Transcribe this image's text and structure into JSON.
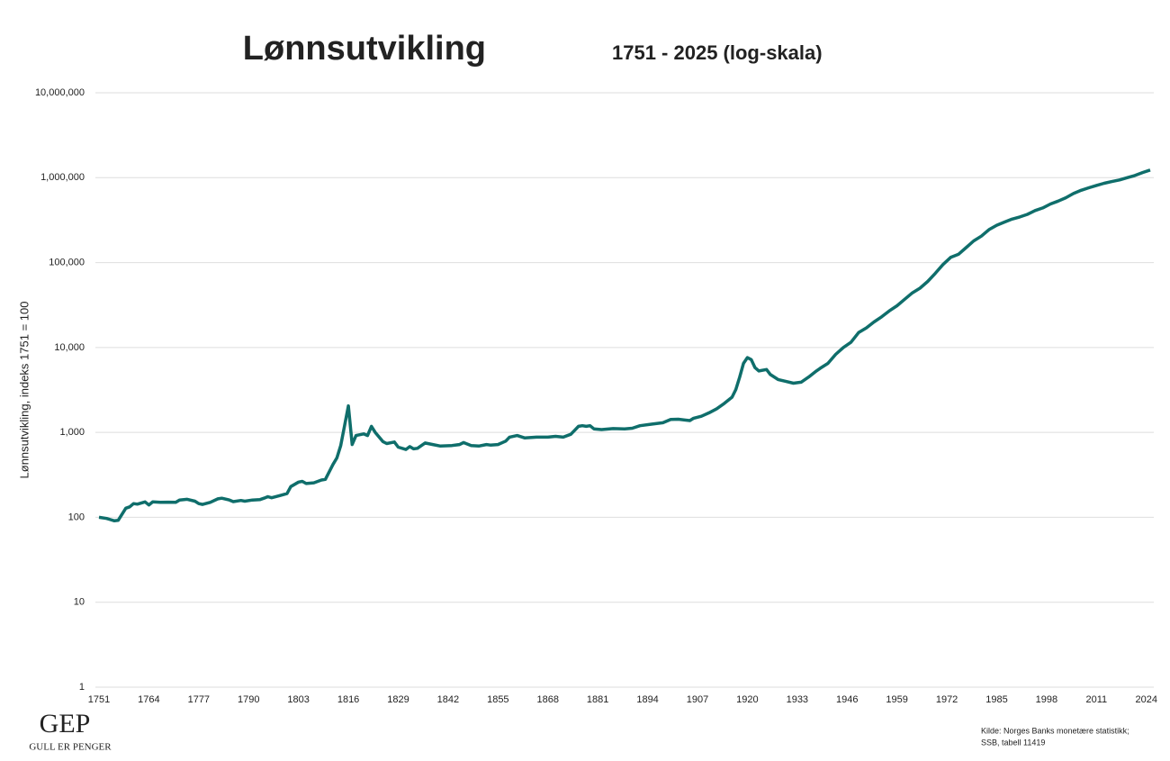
{
  "chart_data": {
    "type": "line",
    "title": "Lønnsutvikling",
    "subtitle": "1751 - 2025 (log-skala)",
    "y_label": "Lønnsutvikling, indeks 1751 = 100",
    "source": [
      "Kilde: Norges Banks monetære statistikk;",
      "SSB, tabell 11419"
    ],
    "logo": [
      "GEP",
      "GULL ER PENGER"
    ],
    "log_scale": true,
    "grid": true,
    "xlim": [
      1751,
      2025
    ],
    "xticks": [
      1751,
      1764,
      1777,
      1790,
      1803,
      1816,
      1829,
      1842,
      1855,
      1868,
      1881,
      1894,
      1907,
      1920,
      1933,
      1946,
      1959,
      1972,
      1985,
      1998,
      2011,
      2024
    ],
    "ylim": [
      1,
      10000000
    ],
    "yticks": [
      1,
      10,
      100,
      {
        "value": 1000,
        "label": "1,000"
      },
      {
        "value": 10000,
        "label": "10,000"
      },
      {
        "value": 100000,
        "label": "100,000"
      },
      {
        "value": 1000000,
        "label": "1,000,000"
      },
      {
        "value": 10000000,
        "label": "10,000,000"
      }
    ],
    "series": [
      {
        "color": "#0f6e6b",
        "x": [
          1751,
          1753,
          1754,
          1755,
          1756,
          1758,
          1759,
          1760,
          1761,
          1763,
          1764,
          1765,
          1767,
          1769,
          1771,
          1772,
          1774,
          1776,
          1777,
          1778,
          1780,
          1782,
          1783,
          1785,
          1786,
          1788,
          1789,
          1791,
          1793,
          1794,
          1795,
          1796,
          1798,
          1800,
          1801,
          1803,
          1804,
          1805,
          1807,
          1809,
          1810,
          1812,
          1813,
          1814,
          1816,
          1817,
          1818,
          1820,
          1821,
          1822,
          1823,
          1825,
          1826,
          1828,
          1829,
          1831,
          1832,
          1833,
          1834,
          1836,
          1838,
          1840,
          1843,
          1845,
          1846,
          1848,
          1850,
          1852,
          1853,
          1855,
          1857,
          1858,
          1860,
          1862,
          1865,
          1868,
          1870,
          1872,
          1874,
          1876,
          1877,
          1878,
          1879,
          1880,
          1882,
          1885,
          1888,
          1890,
          1892,
          1895,
          1898,
          1900,
          1902,
          1905,
          1906,
          1908,
          1910,
          1912,
          1914,
          1916,
          1917,
          1918,
          1919,
          1920,
          1921,
          1922,
          1923,
          1925,
          1926,
          1928,
          1930,
          1932,
          1934,
          1936,
          1938,
          1939,
          1941,
          1943,
          1945,
          1947,
          1949,
          1951,
          1953,
          1955,
          1957,
          1959,
          1961,
          1963,
          1965,
          1967,
          1969,
          1971,
          1973,
          1975,
          1977,
          1979,
          1981,
          1983,
          1985,
          1987,
          1989,
          1991,
          1993,
          1995,
          1997,
          1999,
          2001,
          2003,
          2005,
          2007,
          2009,
          2011,
          2013,
          2015,
          2017,
          2019,
          2021,
          2023,
          2025
        ],
        "values": [
          100,
          97,
          94,
          91,
          92,
          128,
          133,
          145,
          143,
          152,
          140,
          152,
          150,
          151,
          150,
          160,
          163,
          155,
          145,
          142,
          150,
          165,
          168,
          160,
          153,
          158,
          155,
          160,
          162,
          168,
          175,
          170,
          180,
          190,
          230,
          260,
          265,
          250,
          255,
          275,
          280,
          420,
          500,
          700,
          2050,
          720,
          920,
          960,
          920,
          1180,
          1000,
          780,
          740,
          770,
          670,
          630,
          680,
          640,
          650,
          750,
          720,
          690,
          700,
          720,
          760,
          700,
          690,
          720,
          710,
          720,
          790,
          880,
          920,
          860,
          880,
          880,
          900,
          880,
          950,
          1180,
          1200,
          1180,
          1200,
          1100,
          1080,
          1110,
          1100,
          1120,
          1200,
          1250,
          1300,
          1420,
          1430,
          1380,
          1470,
          1550,
          1700,
          1900,
          2200,
          2600,
          3200,
          4500,
          6500,
          7600,
          7200,
          5800,
          5300,
          5500,
          4800,
          4200,
          4000,
          3800,
          3900,
          4500,
          5300,
          5700,
          6500,
          8300,
          10000,
          11500,
          15000,
          17000,
          20000,
          23000,
          27000,
          31000,
          37000,
          44000,
          50000,
          60000,
          75000,
          95000,
          115000,
          125000,
          150000,
          180000,
          205000,
          245000,
          275000,
          300000,
          325000,
          345000,
          370000,
          410000,
          440000,
          490000,
          530000,
          580000,
          650000,
          710000,
          760000,
          810000,
          860000,
          900000,
          940000,
          1000000,
          1060000,
          1150000,
          1230000
        ]
      }
    ]
  }
}
